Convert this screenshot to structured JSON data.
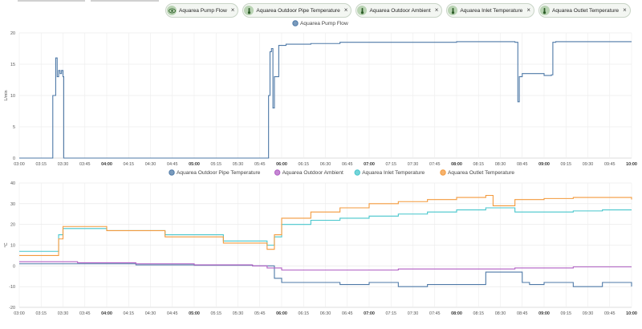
{
  "chips": [
    {
      "label": "Aquarea Pump Flow",
      "icon": "eye-icon"
    },
    {
      "label": "Aquarea Outdoor Pipe Temperature",
      "icon": "thermometer-icon"
    },
    {
      "label": "Aquarea Outdoor Ambient",
      "icon": "thermometer-icon"
    },
    {
      "label": "Aquarea Inlet Temperature",
      "icon": "thermometer-icon"
    },
    {
      "label": "Aquarea Outlet Temperature",
      "icon": "thermometer-icon"
    }
  ],
  "close_glyph": "×",
  "chart_data": [
    {
      "type": "line",
      "ylabel": "L/min",
      "ylim": [
        0,
        20
      ],
      "yticks": [
        0,
        5,
        10,
        15,
        20
      ],
      "x_ticks": [
        "03:00",
        "03:15",
        "03:30",
        "03:45",
        "04:00",
        "04:15",
        "04:30",
        "04:45",
        "05:00",
        "05:15",
        "05:30",
        "05:45",
        "06:00",
        "06:15",
        "06:30",
        "06:45",
        "07:00",
        "07:15",
        "07:30",
        "07:45",
        "08:00",
        "08:15",
        "08:30",
        "08:45",
        "09:00",
        "09:15",
        "09:30",
        "09:45",
        "10:00"
      ],
      "bold_ticks": [
        "04:00",
        "05:00",
        "06:00",
        "07:00",
        "08:00",
        "09:00",
        "10:00"
      ],
      "series": [
        {
          "name": "Aquarea Pump Flow",
          "color": "#4e79a7",
          "x": [
            0,
            22,
            23,
            25,
            26,
            27,
            28,
            29,
            30,
            30.5,
            170,
            171,
            172,
            173,
            174,
            175,
            176,
            178,
            180,
            182,
            183,
            200,
            220,
            260,
            300,
            320,
            340,
            342,
            343,
            345,
            360,
            365,
            366,
            368,
            380,
            400,
            420
          ],
          "y": [
            0,
            0,
            10,
            16,
            13,
            14,
            13.5,
            14,
            13,
            0,
            0,
            10,
            17,
            17.5,
            8,
            13,
            13,
            18,
            18,
            18,
            18.2,
            18.3,
            18.5,
            18.5,
            18.6,
            18.6,
            18.5,
            9,
            13,
            13.5,
            13.2,
            13.3,
            18.5,
            18.6,
            18.6,
            18.6,
            18.6
          ]
        }
      ]
    },
    {
      "type": "line",
      "ylabel": "°C",
      "ylim": [
        -20,
        40
      ],
      "yticks": [
        -20,
        -10,
        0,
        10,
        20,
        30,
        40
      ],
      "x_ticks": [
        "03:00",
        "03:15",
        "03:30",
        "03:45",
        "04:00",
        "04:15",
        "04:30",
        "04:45",
        "05:00",
        "05:15",
        "05:30",
        "05:45",
        "06:00",
        "06:15",
        "06:30",
        "06:45",
        "07:00",
        "07:15",
        "07:30",
        "07:45",
        "08:00",
        "08:15",
        "08:30",
        "08:45",
        "09:00",
        "09:15",
        "09:30",
        "09:45",
        "10:00"
      ],
      "bold_ticks": [
        "04:00",
        "05:00",
        "06:00",
        "07:00",
        "08:00",
        "09:00",
        "10:00"
      ],
      "series": [
        {
          "name": "Aquarea Outdoor Pipe Temperature",
          "color": "#4e79a7",
          "x": [
            0,
            20,
            40,
            80,
            120,
            160,
            170,
            175,
            180,
            200,
            220,
            240,
            260,
            280,
            300,
            320,
            340,
            345,
            350,
            360,
            380,
            400,
            420
          ],
          "y": [
            1,
            1,
            1,
            0.5,
            0.3,
            0,
            0,
            -6,
            -8,
            -8,
            -9,
            -8,
            -10,
            -9,
            -9,
            -3,
            -3,
            -8,
            -9,
            -8,
            -10,
            -8,
            -10
          ]
        },
        {
          "name": "Aquarea Outdoor Ambient",
          "color": "#b15fc4",
          "x": [
            0,
            40,
            80,
            120,
            160,
            170,
            180,
            220,
            260,
            300,
            340,
            380,
            400,
            420
          ],
          "y": [
            2,
            1.5,
            1,
            0.5,
            0,
            -1,
            -2,
            -2,
            -1.5,
            -1.5,
            -1,
            -0.5,
            -0.5,
            -0.5
          ],
          "legend_only": false
        },
        {
          "name": "Aquarea Inlet Temperature",
          "color": "#47c6cc",
          "x": [
            0,
            25,
            27,
            30,
            60,
            100,
            140,
            170,
            172,
            175,
            180,
            200,
            220,
            240,
            260,
            280,
            300,
            320,
            340,
            360,
            380,
            400,
            420
          ],
          "y": [
            7,
            7,
            15,
            18,
            17,
            15,
            12,
            10,
            10,
            14,
            20,
            22,
            23,
            24,
            25,
            26,
            27,
            28,
            26,
            26,
            26.5,
            27,
            27
          ]
        },
        {
          "name": "Aquarea Outlet Temperature",
          "color": "#f39a3d",
          "x": [
            0,
            25,
            27,
            30,
            60,
            100,
            140,
            170,
            172,
            175,
            180,
            200,
            220,
            240,
            260,
            280,
            300,
            320,
            325,
            340,
            360,
            380,
            400,
            420
          ],
          "y": [
            5,
            5,
            13,
            19,
            17,
            14,
            11,
            8,
            8,
            15,
            23,
            26,
            28,
            30,
            31,
            32,
            33,
            34,
            29,
            32,
            32.5,
            33,
            33,
            32
          ]
        }
      ]
    }
  ],
  "legends": {
    "top": [
      "Aquarea Pump Flow"
    ],
    "bottom": [
      "Aquarea Outdoor Pipe Temperature",
      "Aquarea Outdoor Ambient",
      "Aquarea Inlet Temperature",
      "Aquarea Outlet Temperature"
    ]
  }
}
